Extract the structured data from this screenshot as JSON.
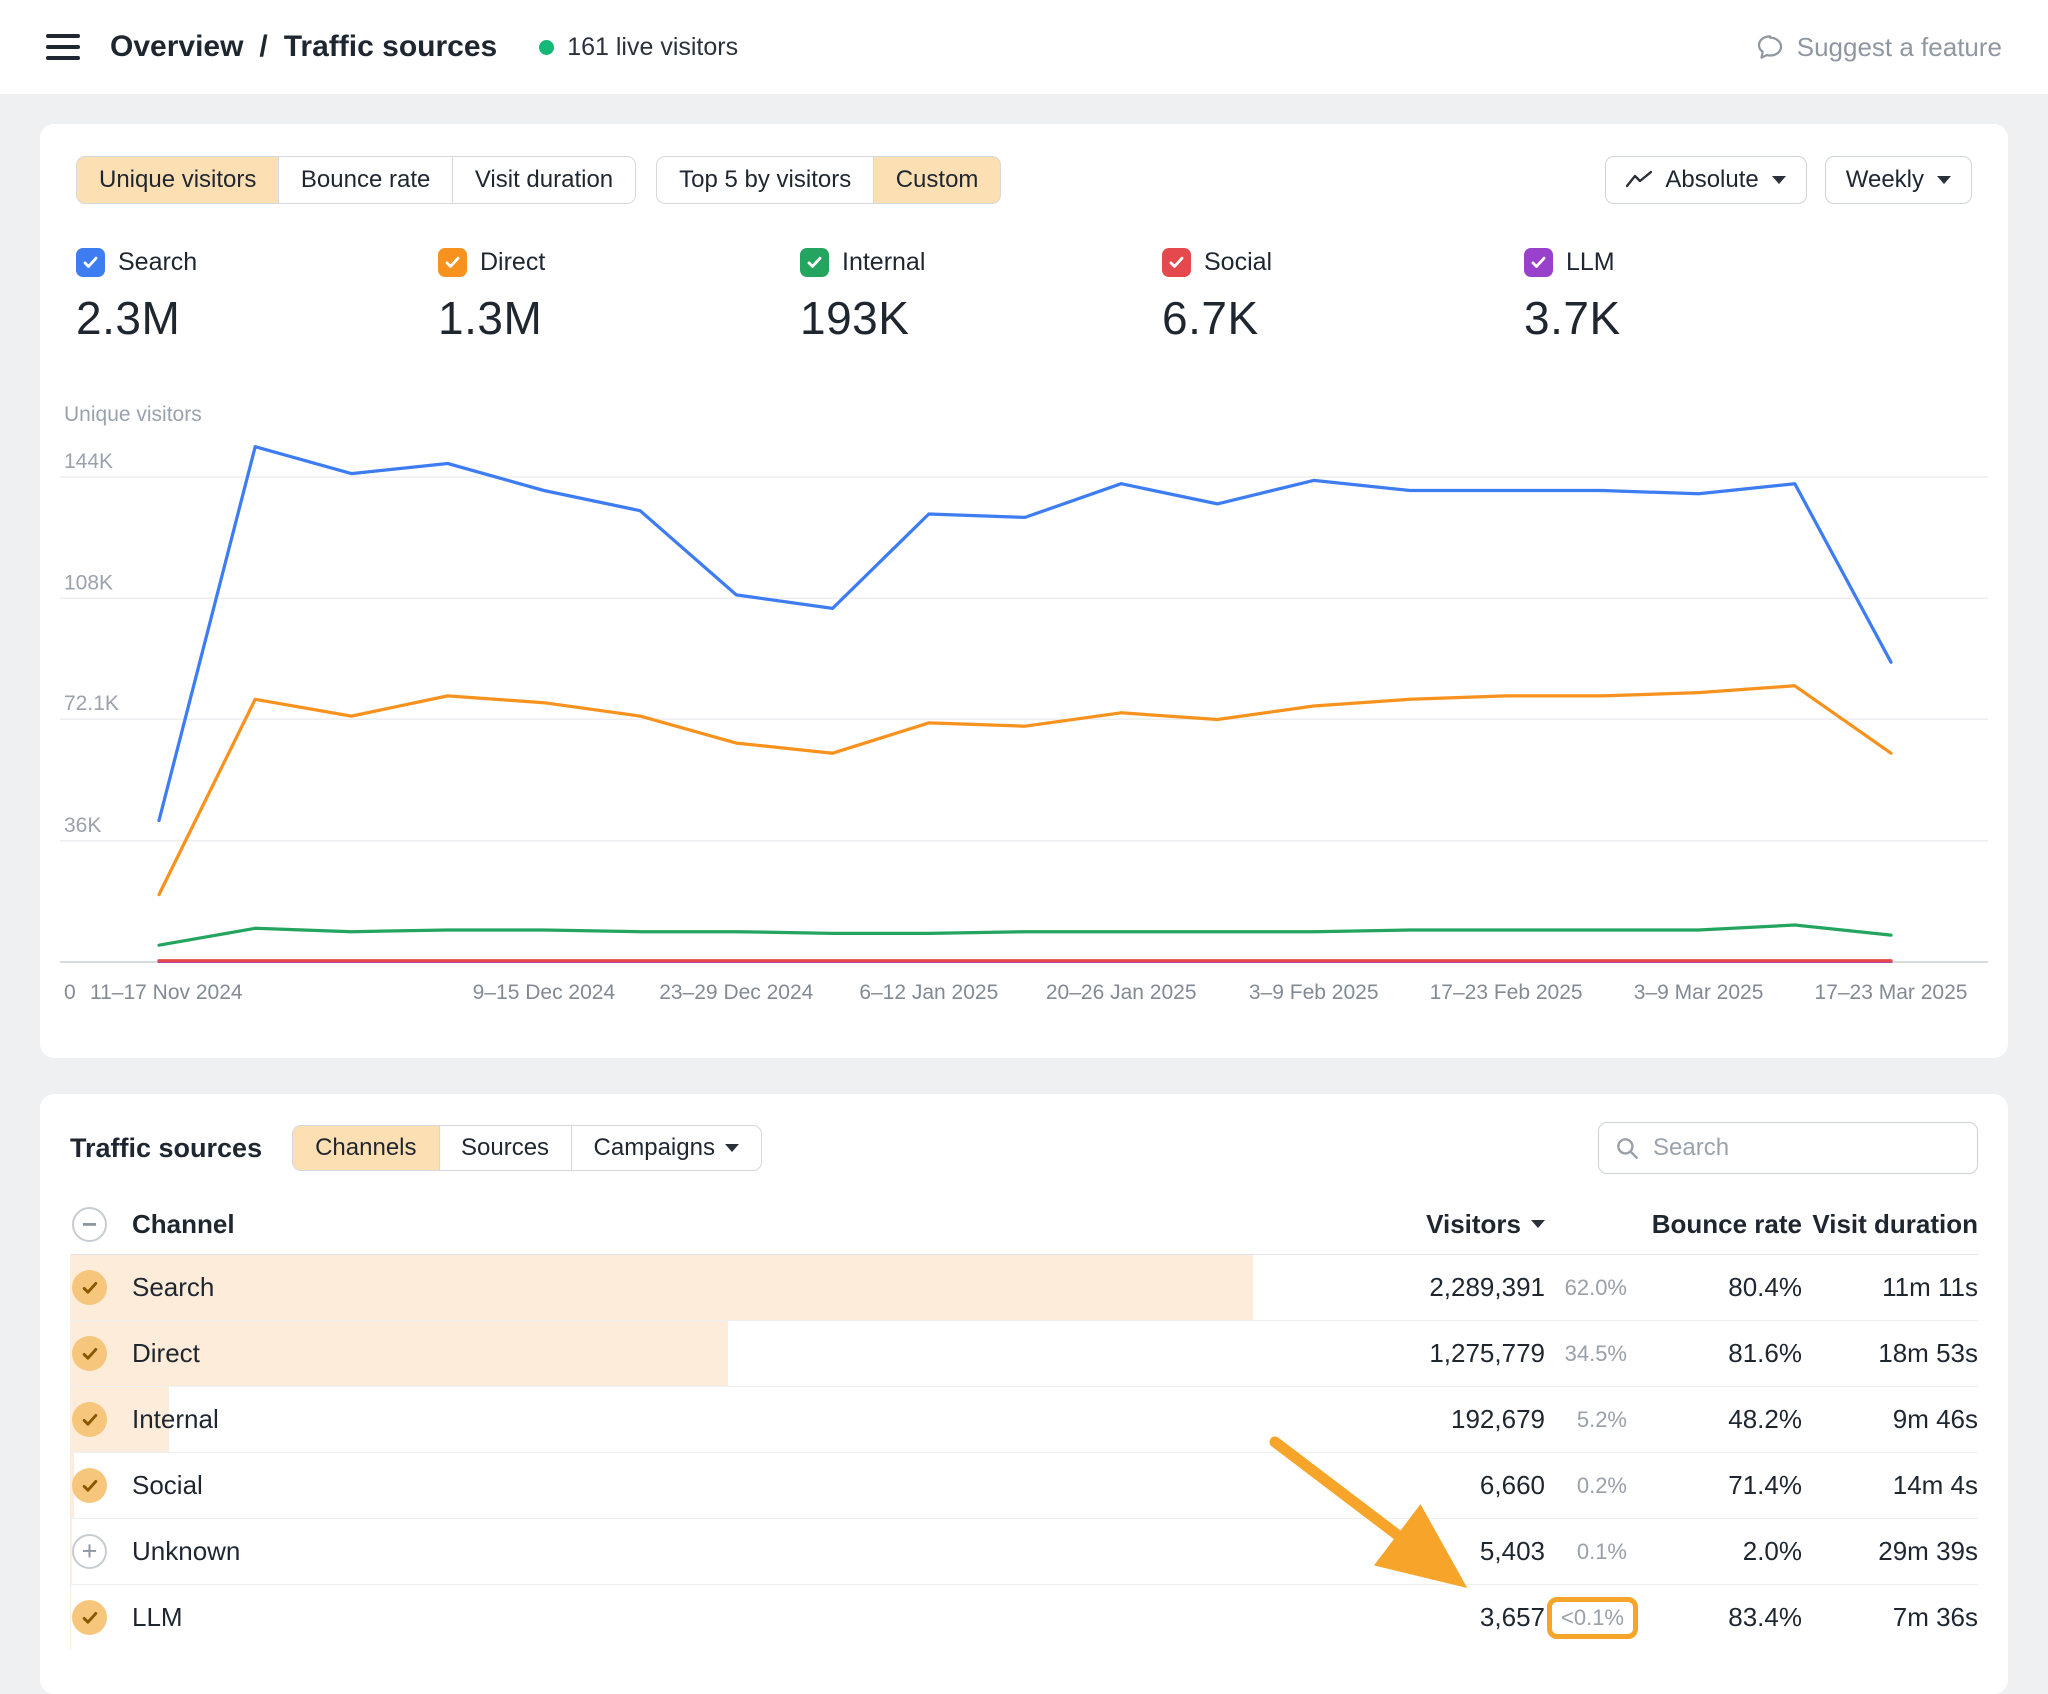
{
  "header": {
    "breadcrumb": {
      "section": "Overview",
      "separator": "/",
      "page": "Traffic sources"
    },
    "live_visitors": "161 live visitors",
    "suggest_feature_label": "Suggest a feature"
  },
  "chart_card": {
    "metric_tabs": [
      {
        "label": "Unique visitors",
        "active": true
      },
      {
        "label": "Bounce rate",
        "active": false
      },
      {
        "label": "Visit duration",
        "active": false
      }
    ],
    "view_tabs": [
      {
        "label": "Top 5 by visitors",
        "active": false
      },
      {
        "label": "Custom",
        "active": true
      }
    ],
    "mode_button_label": "Absolute",
    "interval_button_label": "Weekly",
    "legend": [
      {
        "label": "Search",
        "value": "2.3M"
      },
      {
        "label": "Direct",
        "value": "1.3M"
      },
      {
        "label": "Internal",
        "value": "193K"
      },
      {
        "label": "Social",
        "value": "6.7K"
      },
      {
        "label": "LLM",
        "value": "3.7K"
      }
    ]
  },
  "chart_data": {
    "type": "line",
    "ylabel": "Unique visitors",
    "ylim": [
      0,
      167000
    ],
    "grid": "horizontal",
    "x_unit": "week",
    "origin_label": "0",
    "y_ticks": [
      {
        "label": "144K",
        "value": 144000
      },
      {
        "label": "108K",
        "value": 108000
      },
      {
        "label": "72.1K",
        "value": 72100
      },
      {
        "label": "36K",
        "value": 36000
      }
    ],
    "x_tick_labels": [
      {
        "index": 0,
        "label": "11–17 Nov 2024"
      },
      {
        "index": 4,
        "label": "9–15 Dec 2024"
      },
      {
        "index": 6,
        "label": "23–29 Dec 2024"
      },
      {
        "index": 8,
        "label": "6–12 Jan 2025"
      },
      {
        "index": 10,
        "label": "20–26 Jan 2025"
      },
      {
        "index": 12,
        "label": "3–9 Feb 2025"
      },
      {
        "index": 14,
        "label": "17–23 Feb 2025"
      },
      {
        "index": 16,
        "label": "3–9 Mar 2025"
      },
      {
        "index": 18,
        "label": "17–23 Mar 2025"
      }
    ],
    "series": [
      {
        "name": "Search",
        "color": "#3d7df1",
        "values": [
          42000,
          153000,
          145000,
          148000,
          140000,
          134000,
          109000,
          105000,
          133000,
          132000,
          142000,
          136000,
          143000,
          140000,
          140000,
          140000,
          139000,
          142000,
          89000
        ]
      },
      {
        "name": "Direct",
        "color": "#f7921e",
        "values": [
          20000,
          78000,
          73000,
          79000,
          77000,
          73000,
          65000,
          62000,
          71000,
          70000,
          74000,
          72000,
          76000,
          78000,
          79000,
          79000,
          80000,
          82000,
          62000
        ]
      },
      {
        "name": "Internal",
        "color": "#23a55f",
        "values": [
          5000,
          10000,
          9000,
          9500,
          9500,
          9000,
          9000,
          8500,
          8500,
          9000,
          9000,
          9000,
          9000,
          9500,
          9500,
          9500,
          9500,
          11000,
          8000
        ]
      },
      {
        "name": "Social",
        "color": "#e5484d",
        "values": [
          350,
          350,
          350,
          350,
          350,
          350,
          350,
          350,
          350,
          350,
          350,
          350,
          350,
          350,
          350,
          350,
          350,
          350,
          350
        ]
      },
      {
        "name": "LLM",
        "color": "#9a41cc",
        "values": [
          190,
          190,
          190,
          190,
          190,
          190,
          190,
          190,
          190,
          190,
          190,
          190,
          190,
          190,
          190,
          190,
          190,
          190,
          190
        ]
      }
    ]
  },
  "table": {
    "title": "Traffic sources",
    "tabs": [
      {
        "label": "Channels",
        "active": true
      },
      {
        "label": "Sources",
        "active": false
      },
      {
        "label": "Campaigns",
        "active": false,
        "has_caret": true
      }
    ],
    "search_placeholder": "Search",
    "columns": {
      "channel": "Channel",
      "visitors": "Visitors",
      "bounce": "Bounce rate",
      "duration": "Visit duration"
    },
    "rows": [
      {
        "channel": "Search",
        "icon": "check",
        "visitors": "2,289,391",
        "share": "62.0%",
        "share_pct": 62.0,
        "bounce": "80.4%",
        "duration": "11m 11s"
      },
      {
        "channel": "Direct",
        "icon": "check",
        "visitors": "1,275,779",
        "share": "34.5%",
        "share_pct": 34.5,
        "bounce": "81.6%",
        "duration": "18m 53s"
      },
      {
        "channel": "Internal",
        "icon": "check",
        "visitors": "192,679",
        "share": "5.2%",
        "share_pct": 5.2,
        "bounce": "48.2%",
        "duration": "9m 46s"
      },
      {
        "channel": "Social",
        "icon": "check",
        "visitors": "6,660",
        "share": "0.2%",
        "share_pct": 0.2,
        "bounce": "71.4%",
        "duration": "14m 4s"
      },
      {
        "channel": "Unknown",
        "icon": "plus",
        "visitors": "5,403",
        "share": "0.1%",
        "share_pct": 0.1,
        "bounce": "2.0%",
        "duration": "29m 39s"
      },
      {
        "channel": "LLM",
        "icon": "check",
        "visitors": "3,657",
        "share": "<0.1%",
        "share_pct": 0.05,
        "bounce": "83.4%",
        "duration": "7m 36s",
        "share_highlighted": true
      }
    ]
  },
  "glyphs": {
    "plus": "+",
    "minus": "−"
  },
  "colors": {
    "active_tab_bg": "#fcdfb2",
    "row_share_bar": "#fcecd9",
    "annotation": "#f7a52a",
    "check_circle_bg": "#f6c67c",
    "check_mark": "#8a5600",
    "live_dot": "#16b877"
  }
}
